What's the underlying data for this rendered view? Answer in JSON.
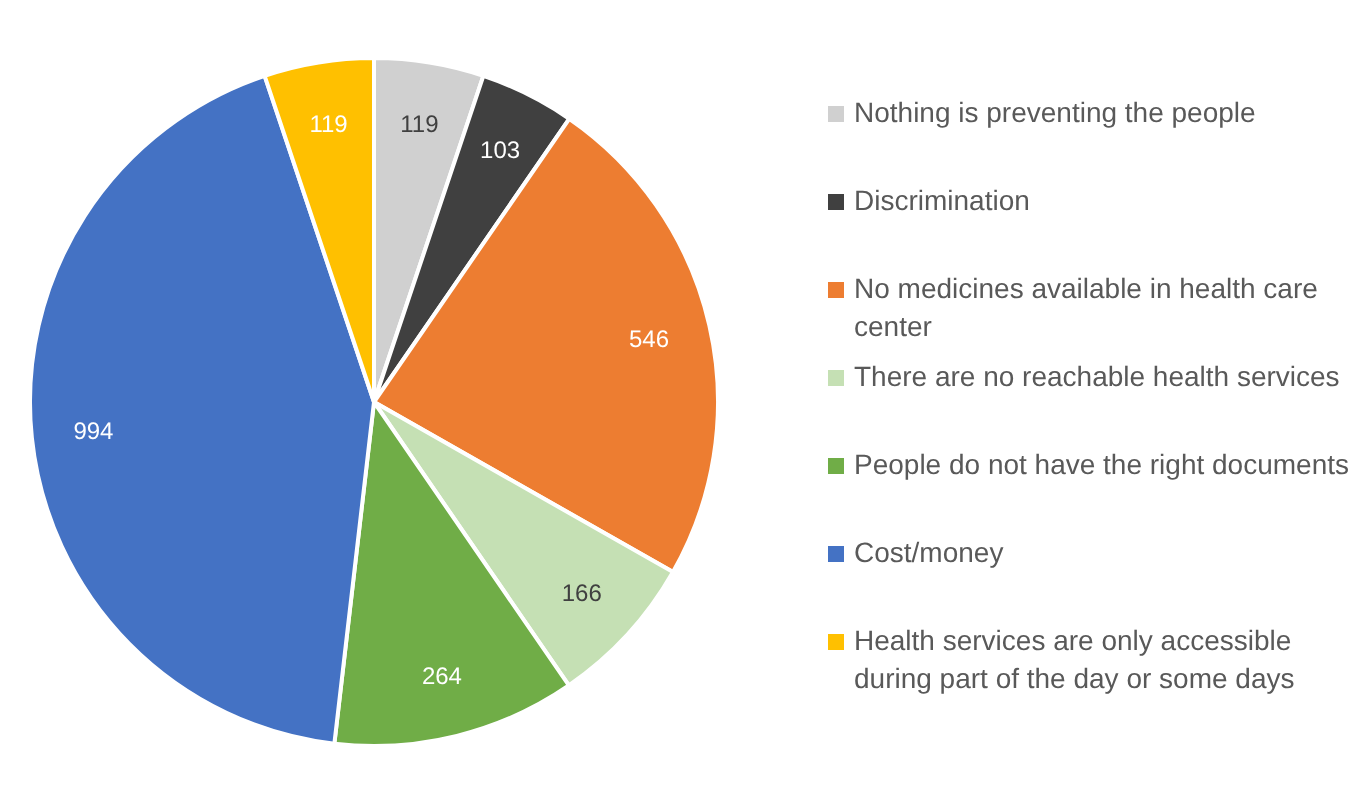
{
  "chart_data": {
    "type": "pie",
    "categories": [
      "Nothing is preventing the people",
      "Discrimination",
      "No medicines available in health care center",
      "There are no reachable health services",
      "People do not have the right documents",
      "Cost/money",
      "Health services are only accessible during part of the day or some days"
    ],
    "values": [
      119,
      103,
      546,
      166,
      264,
      994,
      119
    ],
    "colors": [
      "#d0d0d0",
      "#404040",
      "#ed7d31",
      "#c5e0b4",
      "#70ad47",
      "#4472c4",
      "#ffc000"
    ],
    "data_labels": true,
    "legend": "right"
  }
}
